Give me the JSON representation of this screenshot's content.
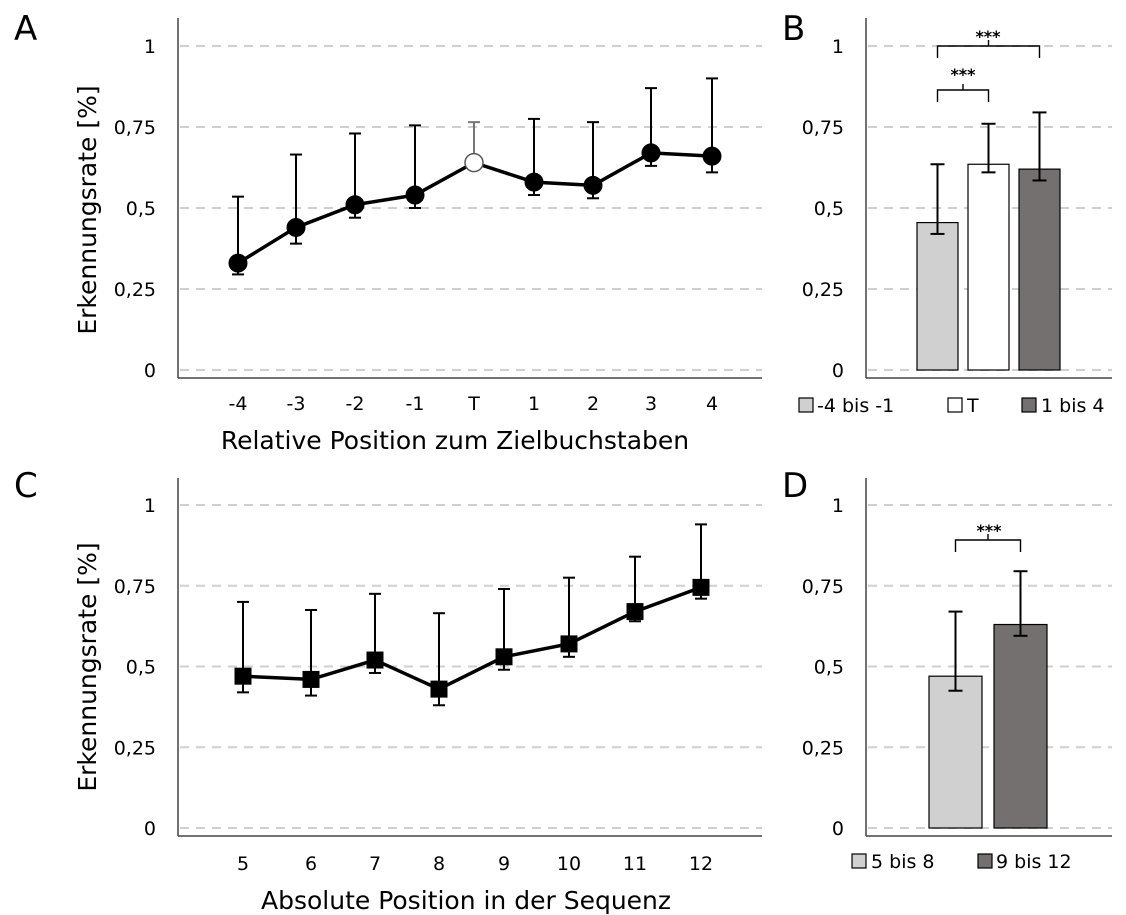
{
  "chart_data": [
    {
      "panel": "A",
      "type": "line",
      "xlabel": "Relative Position zum Zielbuchstaben",
      "ylabel": "Erkennungsrate [%]",
      "categories": [
        "-4",
        "-3",
        "-2",
        "-1",
        "T",
        "1",
        "2",
        "3",
        "4"
      ],
      "series": [
        {
          "values": [
            0.33,
            0.44,
            0.51,
            0.54,
            0.64,
            0.58,
            0.57,
            0.67,
            0.66
          ],
          "err_up": [
            0.205,
            0.225,
            0.22,
            0.215,
            0.125,
            0.195,
            0.195,
            0.2,
            0.24
          ],
          "err_down": [
            0.035,
            0.05,
            0.04,
            0.04,
            0.0,
            0.04,
            0.04,
            0.04,
            0.05
          ],
          "highlight_index": 4
        }
      ],
      "ylim": [
        0,
        1
      ],
      "yticks": [
        "0",
        "0,25",
        "0,5",
        "0,75",
        "1"
      ],
      "grid": "horizontal dashed"
    },
    {
      "panel": "B",
      "type": "bar",
      "categories": [
        "-4 bis -1",
        "T",
        "1 bis 4"
      ],
      "values": [
        0.455,
        0.635,
        0.62
      ],
      "err_up": [
        0.18,
        0.125,
        0.175
      ],
      "err_down": [
        0.035,
        0.025,
        0.035
      ],
      "colors": [
        "#d0d0d0",
        "#ffffff",
        "#747070"
      ],
      "significance": [
        {
          "from": 0,
          "to": 1,
          "label": "***"
        },
        {
          "from": 0,
          "to": 2,
          "label": "***"
        }
      ],
      "ylim": [
        0,
        1
      ],
      "yticks": [
        "0",
        "0,25",
        "0,5",
        "0,75",
        "1"
      ],
      "legend": "bottom"
    },
    {
      "panel": "C",
      "type": "line",
      "xlabel": "Absolute Position in der Sequenz",
      "ylabel": "Erkennungsrate [%]",
      "categories": [
        "5",
        "6",
        "7",
        "8",
        "9",
        "10",
        "11",
        "12"
      ],
      "series": [
        {
          "values": [
            0.47,
            0.46,
            0.52,
            0.43,
            0.53,
            0.57,
            0.67,
            0.745
          ],
          "err_up": [
            0.23,
            0.215,
            0.205,
            0.235,
            0.21,
            0.205,
            0.17,
            0.195
          ],
          "err_down": [
            0.05,
            0.05,
            0.04,
            0.05,
            0.04,
            0.04,
            0.03,
            0.035
          ]
        }
      ],
      "ylim": [
        0,
        1
      ],
      "yticks": [
        "0",
        "0,25",
        "0,5",
        "0,75",
        "1"
      ],
      "grid": "horizontal dashed"
    },
    {
      "panel": "D",
      "type": "bar",
      "categories": [
        "5 bis 8",
        "9 bis 12"
      ],
      "values": [
        0.47,
        0.63
      ],
      "err_up": [
        0.2,
        0.165
      ],
      "err_down": [
        0.045,
        0.035
      ],
      "colors": [
        "#d0d0d0",
        "#747070"
      ],
      "significance": [
        {
          "from": 0,
          "to": 1,
          "label": "***"
        }
      ],
      "ylim": [
        0,
        1
      ],
      "yticks": [
        "0",
        "0,25",
        "0,5",
        "0,75",
        "1"
      ],
      "legend": "bottom"
    }
  ]
}
